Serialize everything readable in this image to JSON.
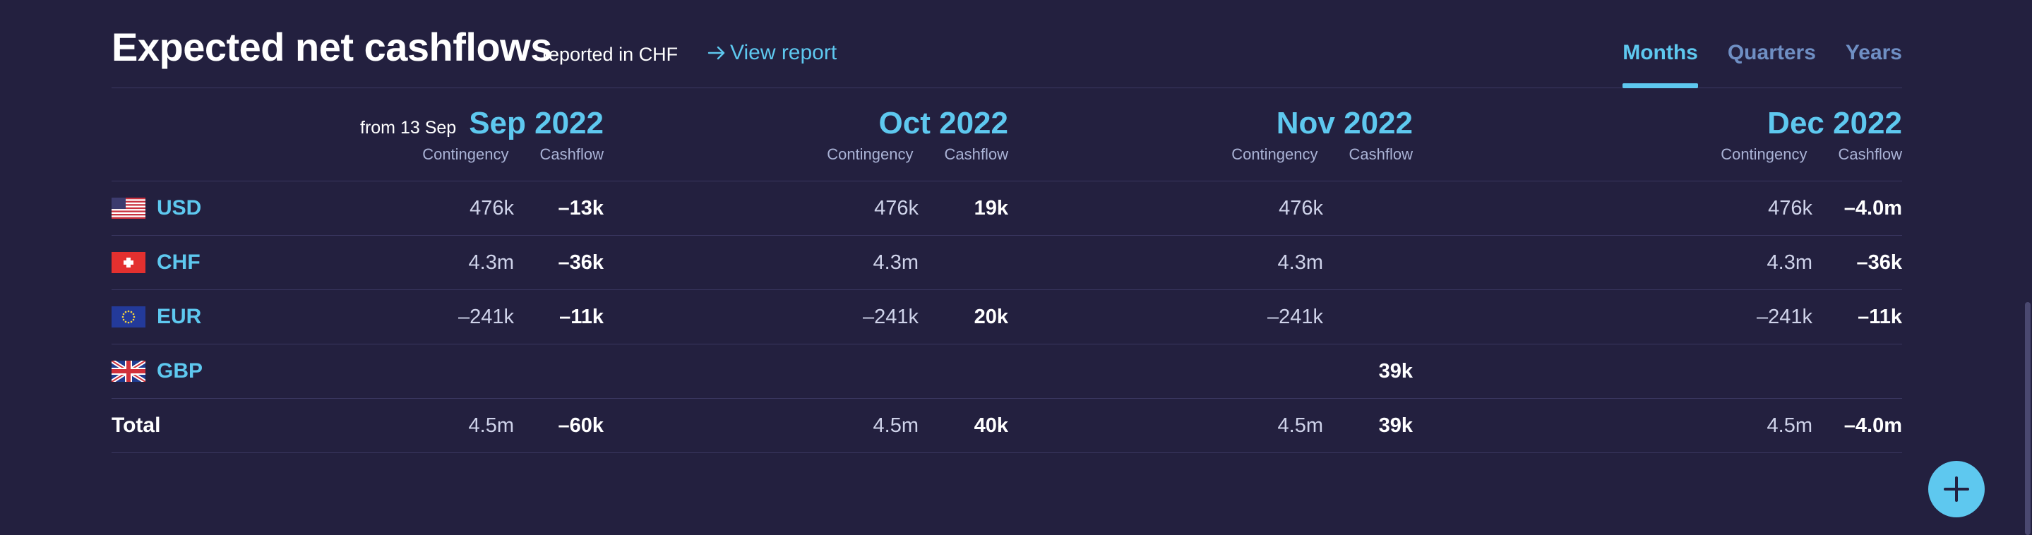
{
  "header": {
    "title": "Expected net cashflows",
    "subtitle": "reported in CHF",
    "view_report": "View report",
    "tabs": [
      {
        "label": "Months",
        "active": true
      },
      {
        "label": "Quarters",
        "active": false
      },
      {
        "label": "Years",
        "active": false
      }
    ]
  },
  "columns": [
    {
      "from": "from 13 Sep",
      "month": "Sep 2022",
      "contingency_label": "Contingency",
      "cashflow_label": "Cashflow"
    },
    {
      "from": "",
      "month": "Oct 2022",
      "contingency_label": "Contingency",
      "cashflow_label": "Cashflow"
    },
    {
      "from": "",
      "month": "Nov 2022",
      "contingency_label": "Contingency",
      "cashflow_label": "Cashflow"
    },
    {
      "from": "",
      "month": "Dec 2022",
      "contingency_label": "Contingency",
      "cashflow_label": "Cashflow"
    }
  ],
  "rows": [
    {
      "currency": "USD",
      "flag": "us-flag-icon",
      "values": [
        [
          "476k",
          "–13k"
        ],
        [
          "476k",
          "19k"
        ],
        [
          "476k",
          ""
        ],
        [
          "476k",
          "–4.0m"
        ]
      ]
    },
    {
      "currency": "CHF",
      "flag": "ch-flag-icon",
      "values": [
        [
          "4.3m",
          "–36k"
        ],
        [
          "4.3m",
          ""
        ],
        [
          "4.3m",
          ""
        ],
        [
          "4.3m",
          "–36k"
        ]
      ]
    },
    {
      "currency": "EUR",
      "flag": "eu-flag-icon",
      "values": [
        [
          "–241k",
          "–11k"
        ],
        [
          "–241k",
          "20k"
        ],
        [
          "–241k",
          ""
        ],
        [
          "–241k",
          "–11k"
        ]
      ]
    },
    {
      "currency": "GBP",
      "flag": "gb-flag-icon",
      "values": [
        [
          "",
          ""
        ],
        [
          "",
          ""
        ],
        [
          "",
          "39k"
        ],
        [
          "",
          ""
        ]
      ]
    }
  ],
  "total": {
    "label": "Total",
    "values": [
      [
        "4.5m",
        "–60k"
      ],
      [
        "4.5m",
        "40k"
      ],
      [
        "4.5m",
        "39k"
      ],
      [
        "4.5m",
        "–4.0m"
      ]
    ]
  },
  "colors": {
    "background": "#23203f",
    "accent": "#5ec8ef",
    "tab_inactive": "#6f8fc4"
  },
  "fab": {
    "icon": "plus-icon"
  }
}
